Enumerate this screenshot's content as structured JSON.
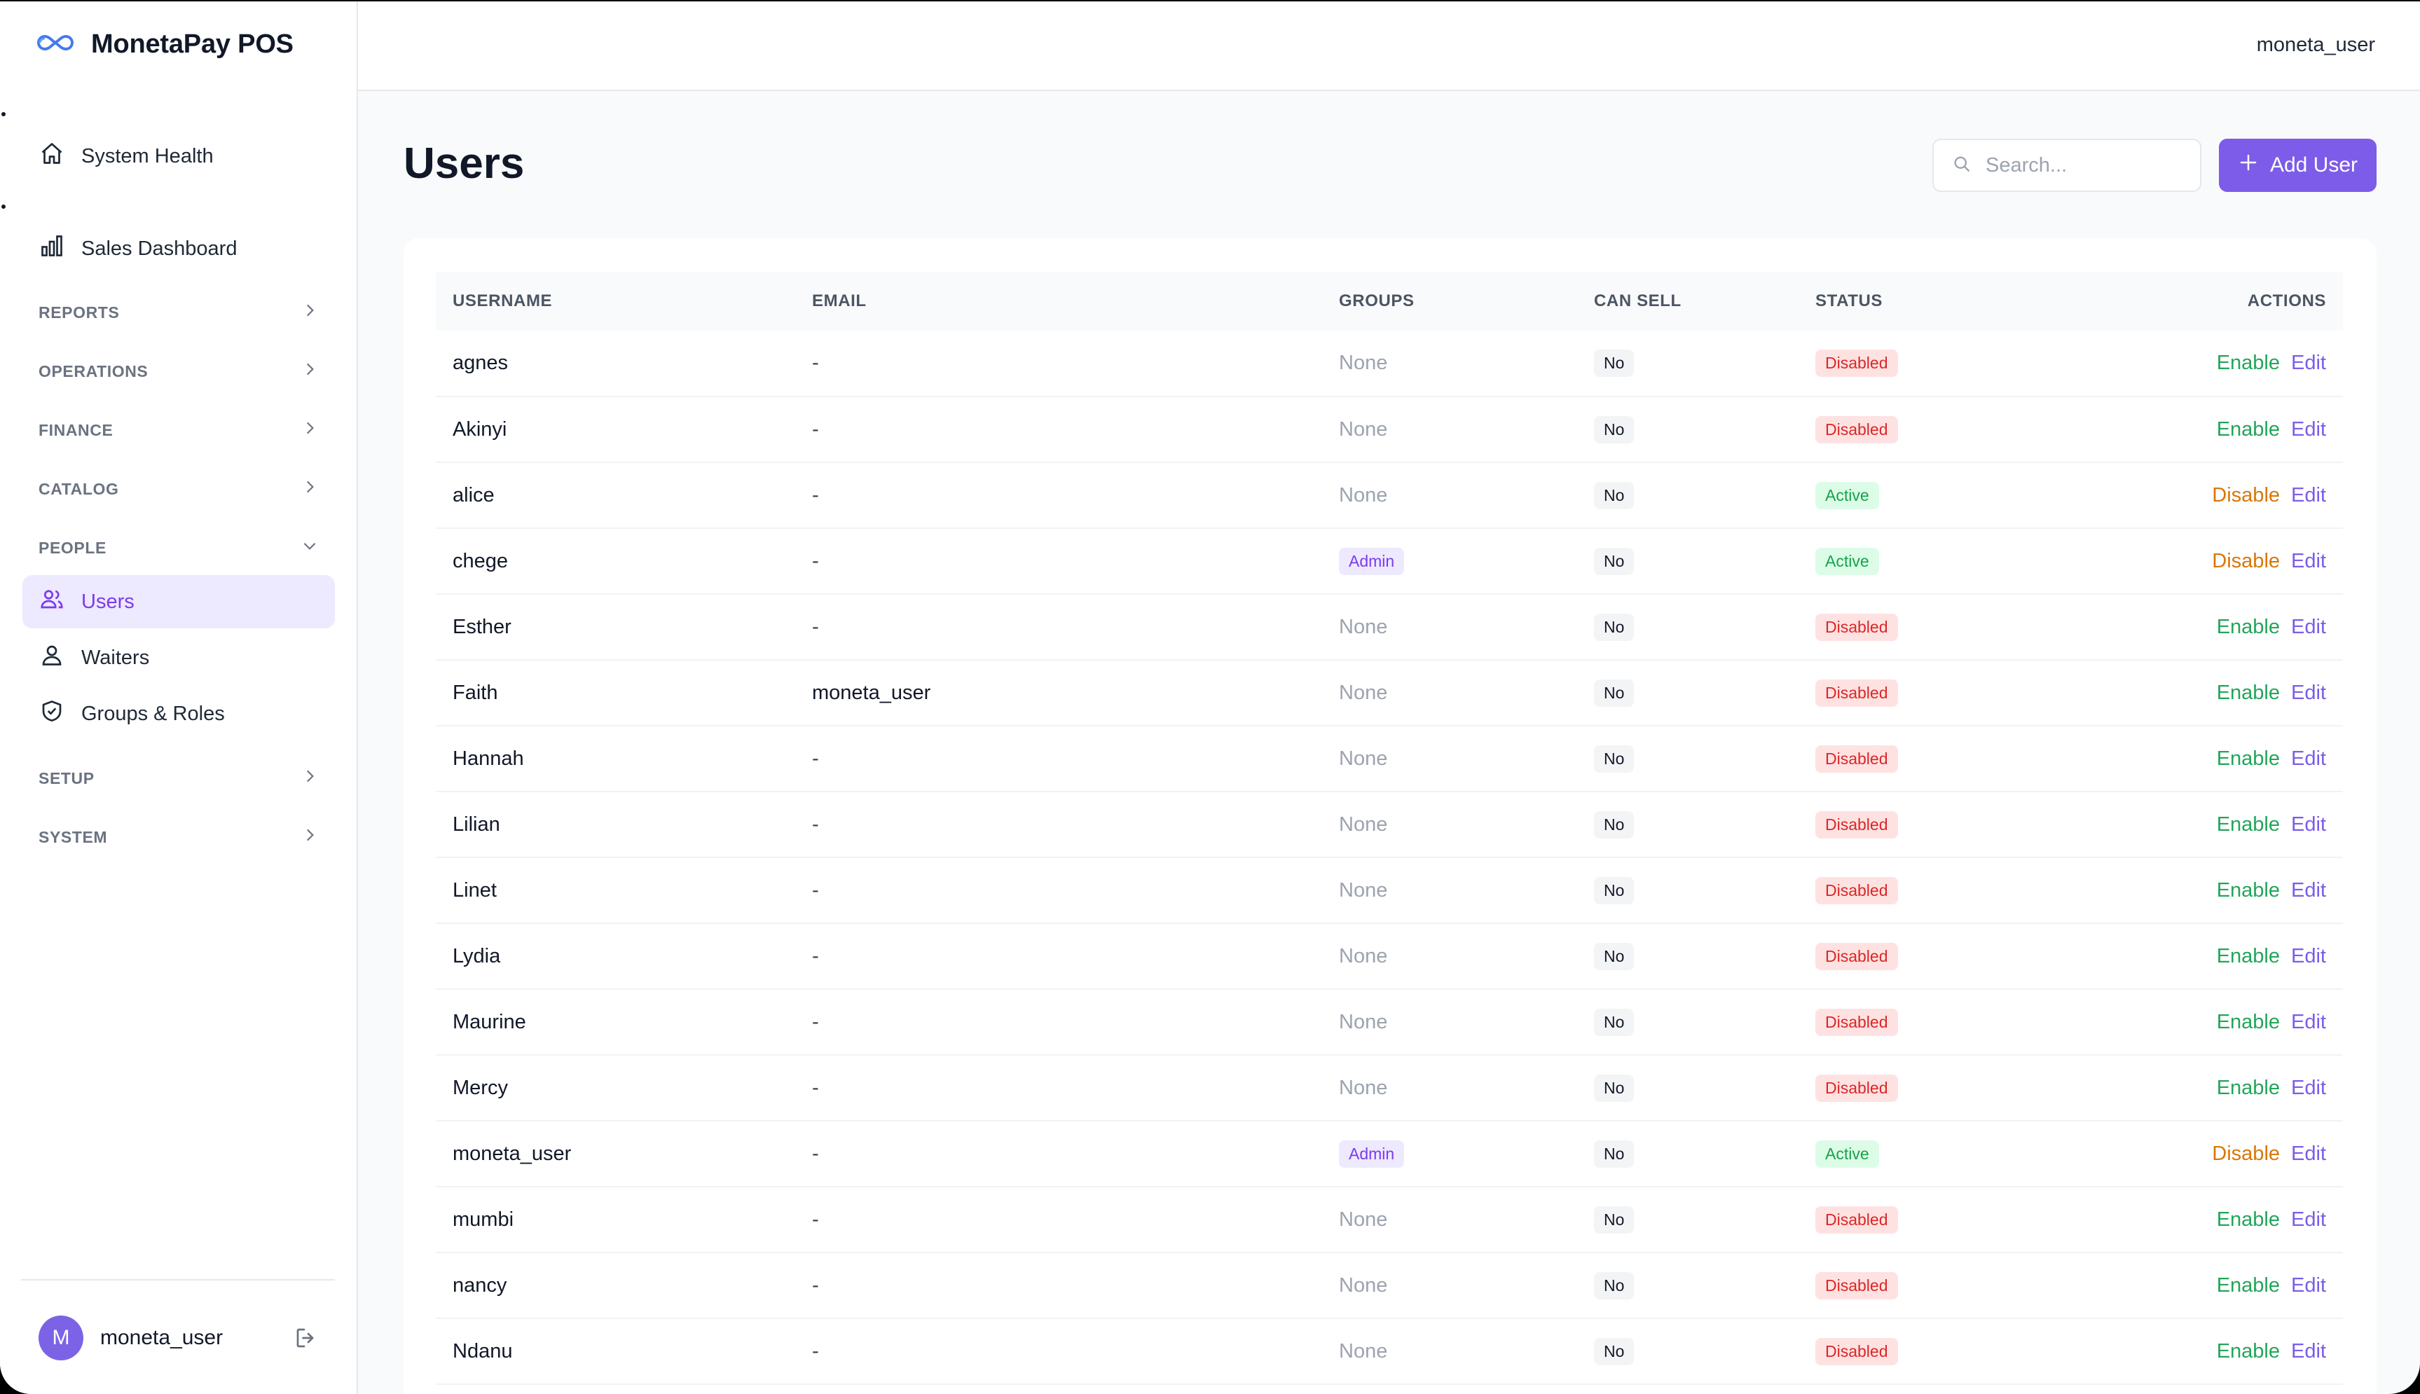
{
  "app": {
    "title": "MonetaPay POS"
  },
  "topbar": {
    "user": "moneta_user"
  },
  "sidebar": {
    "items": [
      {
        "label": "System Health",
        "icon": "home-icon"
      },
      {
        "label": "Sales Dashboard",
        "icon": "bar-chart-icon"
      }
    ],
    "sections": [
      {
        "label": "REPORTS"
      },
      {
        "label": "OPERATIONS"
      },
      {
        "label": "FINANCE"
      },
      {
        "label": "CATALOG"
      },
      {
        "label": "PEOPLE"
      },
      {
        "label": "SETUP"
      },
      {
        "label": "SYSTEM"
      }
    ],
    "people_items": [
      {
        "label": "Users",
        "icon": "users-icon",
        "active": true
      },
      {
        "label": "Waiters",
        "icon": "user-icon"
      },
      {
        "label": "Groups & Roles",
        "icon": "shield-icon"
      }
    ],
    "user": {
      "initial": "M",
      "name": "moneta_user"
    }
  },
  "main": {
    "title": "Users",
    "search_placeholder": "Search...",
    "add_label": "Add User",
    "columns": [
      "USERNAME",
      "EMAIL",
      "GROUPS",
      "CAN SELL",
      "STATUS",
      "ACTIONS"
    ],
    "edit_label": "Edit",
    "rows": [
      {
        "username": "agnes",
        "email": "-",
        "groups": "None",
        "can_sell": "No",
        "status": "Disabled",
        "action": "Enable"
      },
      {
        "username": "Akinyi",
        "email": "-",
        "groups": "None",
        "can_sell": "No",
        "status": "Disabled",
        "action": "Enable"
      },
      {
        "username": "alice",
        "email": "-",
        "groups": "None",
        "can_sell": "No",
        "status": "Active",
        "action": "Disable"
      },
      {
        "username": "chege",
        "email": "-",
        "groups": "Admin",
        "can_sell": "No",
        "status": "Active",
        "action": "Disable"
      },
      {
        "username": "Esther",
        "email": "-",
        "groups": "None",
        "can_sell": "No",
        "status": "Disabled",
        "action": "Enable"
      },
      {
        "username": "Faith",
        "email": "moneta_user",
        "groups": "None",
        "can_sell": "No",
        "status": "Disabled",
        "action": "Enable"
      },
      {
        "username": "Hannah",
        "email": "-",
        "groups": "None",
        "can_sell": "No",
        "status": "Disabled",
        "action": "Enable"
      },
      {
        "username": "Lilian",
        "email": "-",
        "groups": "None",
        "can_sell": "No",
        "status": "Disabled",
        "action": "Enable"
      },
      {
        "username": "Linet",
        "email": "-",
        "groups": "None",
        "can_sell": "No",
        "status": "Disabled",
        "action": "Enable"
      },
      {
        "username": "Lydia",
        "email": "-",
        "groups": "None",
        "can_sell": "No",
        "status": "Disabled",
        "action": "Enable"
      },
      {
        "username": "Maurine",
        "email": "-",
        "groups": "None",
        "can_sell": "No",
        "status": "Disabled",
        "action": "Enable"
      },
      {
        "username": "Mercy",
        "email": "-",
        "groups": "None",
        "can_sell": "No",
        "status": "Disabled",
        "action": "Enable"
      },
      {
        "username": "moneta_user",
        "email": "-",
        "groups": "Admin",
        "can_sell": "No",
        "status": "Active",
        "action": "Disable"
      },
      {
        "username": "mumbi",
        "email": "-",
        "groups": "None",
        "can_sell": "No",
        "status": "Disabled",
        "action": "Enable"
      },
      {
        "username": "nancy",
        "email": "-",
        "groups": "None",
        "can_sell": "No",
        "status": "Disabled",
        "action": "Enable"
      },
      {
        "username": "Ndanu",
        "email": "-",
        "groups": "None",
        "can_sell": "No",
        "status": "Disabled",
        "action": "Enable"
      }
    ]
  },
  "colors": {
    "accent": "#7c5ce8",
    "active_bg": "#dcfce7",
    "disabled_bg": "#fee2e2"
  }
}
